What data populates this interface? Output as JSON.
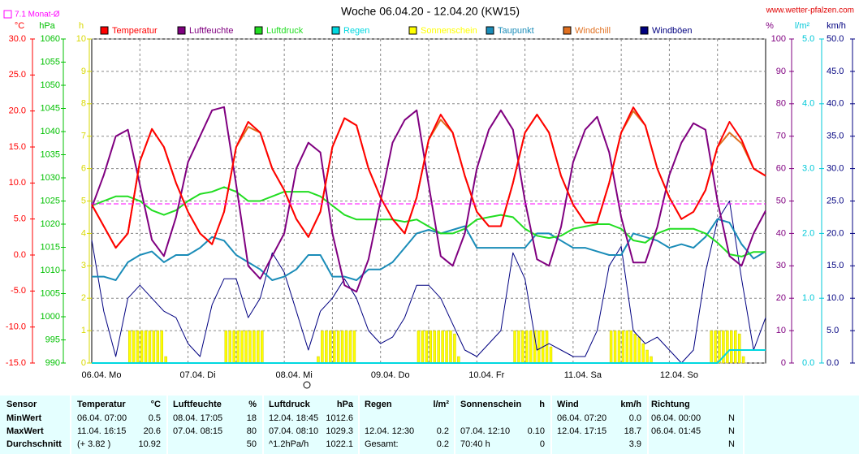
{
  "chart_data": {
    "type": "line",
    "title": "Woche 06.04.20 - 12.04.20 (KW15)",
    "source": "www.wetter-pfalzen.com",
    "monthly_avg_label": "7.1 Monat-Ø",
    "monthly_avg": 7.1,
    "monthly_avg_color": "#ff00ff",
    "grid": true,
    "grid_axis": "humidity",
    "xticks": [
      "06.04. Mo",
      "07.04. Di",
      "08.04. Mi",
      "09.04. Do",
      "10.04. Fr",
      "11.04. Sa",
      "12.04. So"
    ],
    "axes": {
      "temp": {
        "side": "left",
        "label": "°C",
        "color": "#ff0000",
        "lim": [
          -15,
          30
        ],
        "ticks": [
          {
            "value": -15,
            "label": "-15.0"
          },
          {
            "value": -10,
            "label": "-10.0"
          },
          {
            "value": -5,
            "label": "-5.0"
          },
          {
            "value": 0,
            "label": "0.0"
          },
          {
            "value": 5,
            "label": "5.0"
          },
          {
            "value": 10,
            "label": "10.0"
          },
          {
            "value": 15,
            "label": "15.0"
          },
          {
            "value": 20,
            "label": "20.0"
          },
          {
            "value": 25,
            "label": "25.0"
          },
          {
            "value": 30,
            "label": "30.0"
          }
        ]
      },
      "pressure": {
        "side": "left",
        "label": "hPa",
        "color": "#00c000",
        "lim": [
          990,
          1060
        ],
        "ticks": [
          990,
          995,
          1000,
          1005,
          1010,
          1015,
          1020,
          1025,
          1030,
          1035,
          1040,
          1045,
          1050,
          1055,
          1060
        ]
      },
      "sun": {
        "side": "left",
        "label": "h",
        "color": "#d8d800",
        "lim": [
          0,
          10
        ],
        "ticks": [
          0,
          1,
          2,
          3,
          4,
          5,
          6,
          7,
          8,
          9,
          10
        ]
      },
      "humidity": {
        "side": "right",
        "label": "%",
        "color": "#800080",
        "lim": [
          0,
          100
        ],
        "ticks": [
          0,
          10,
          20,
          30,
          40,
          50,
          60,
          70,
          80,
          90,
          100
        ]
      },
      "rain": {
        "side": "right",
        "label": "l/m²",
        "color": "#00c8d8",
        "lim": [
          0,
          5
        ],
        "ticks": [
          {
            "value": 0,
            "label": "0.0"
          },
          {
            "value": 1,
            "label": "1.0"
          },
          {
            "value": 2,
            "label": "2.0"
          },
          {
            "value": 3,
            "label": "3.0"
          },
          {
            "value": 4,
            "label": "4.0"
          },
          {
            "value": 5,
            "label": "5.0"
          }
        ]
      },
      "wind": {
        "side": "right",
        "label": "km/h",
        "color": "#000080",
        "lim": [
          0,
          50
        ],
        "ticks": [
          {
            "value": 0,
            "label": "0.0"
          },
          {
            "value": 5,
            "label": "5.0"
          },
          {
            "value": 10,
            "label": "10.0"
          },
          {
            "value": 15,
            "label": "15.0"
          },
          {
            "value": 20,
            "label": "20.0"
          },
          {
            "value": 25,
            "label": "25.0"
          },
          {
            "value": 30,
            "label": "30.0"
          },
          {
            "value": 35,
            "label": "35.0"
          },
          {
            "value": 40,
            "label": "40.0"
          },
          {
            "value": 45,
            "label": "45.0"
          },
          {
            "value": 50,
            "label": "50.0"
          }
        ]
      }
    },
    "series": [
      {
        "name": "Temperatur",
        "color": "#ff0000",
        "axis": "temp",
        "kind": "line",
        "values": [
          7,
          4,
          1,
          3,
          13,
          17.5,
          15,
          10,
          6,
          3,
          1.5,
          6,
          15,
          18.5,
          17,
          12,
          9,
          5,
          2.5,
          6,
          15,
          19,
          18,
          12,
          8,
          5,
          3,
          8,
          16,
          19.5,
          17,
          11,
          6,
          4,
          4,
          10,
          17,
          19.5,
          17,
          11,
          7,
          4.5,
          4.5,
          10,
          17,
          20.5,
          18,
          12,
          8,
          5,
          6,
          9,
          15,
          18.5,
          16,
          12,
          11
        ]
      },
      {
        "name": "Luftfeuchte",
        "color": "#800080",
        "axis": "humidity",
        "kind": "line",
        "values": [
          48,
          58,
          70,
          72,
          55,
          38,
          33,
          45,
          62,
          70,
          78,
          79,
          55,
          30,
          26,
          33,
          40,
          60,
          68,
          65,
          40,
          24,
          22,
          32,
          50,
          68,
          75,
          78,
          55,
          33,
          30,
          40,
          60,
          72,
          78,
          72,
          50,
          32,
          30,
          42,
          62,
          72,
          76,
          65,
          45,
          31,
          31,
          42,
          58,
          68,
          74,
          72,
          50,
          33,
          30,
          40,
          47
        ]
      },
      {
        "name": "Luftdruck",
        "color": "#22dd22",
        "axis": "pressure",
        "kind": "line",
        "values": [
          1024,
          1025,
          1026,
          1026,
          1025,
          1023,
          1022,
          1023,
          1025,
          1026.5,
          1027,
          1028,
          1027,
          1025,
          1025,
          1026,
          1027,
          1027,
          1027,
          1026,
          1024,
          1022,
          1021,
          1021,
          1021,
          1021,
          1020.5,
          1021,
          1019.5,
          1018,
          1018,
          1019,
          1021,
          1021.5,
          1022,
          1021.5,
          1019,
          1017.5,
          1017,
          1017.5,
          1019,
          1019.5,
          1020,
          1020,
          1019,
          1016.5,
          1016,
          1018,
          1019,
          1019,
          1019,
          1018,
          1016,
          1013.5,
          1013,
          1014,
          1014
        ]
      },
      {
        "name": "Regen",
        "color": "#00d8e0",
        "axis": "rain",
        "kind": "line",
        "values": [
          0,
          0,
          0,
          0,
          0,
          0,
          0,
          0,
          0,
          0,
          0,
          0,
          0,
          0,
          0,
          0,
          0,
          0,
          0,
          0,
          0,
          0,
          0,
          0,
          0,
          0,
          0,
          0,
          0,
          0,
          0,
          0,
          0,
          0,
          0,
          0,
          0,
          0,
          0,
          0,
          0,
          0,
          0,
          0,
          0,
          0,
          0,
          0,
          0,
          0,
          0,
          0,
          0,
          0.2,
          0.2,
          0.2,
          0.2
        ]
      },
      {
        "name": "Sonnenschein",
        "color": "#ffff00",
        "axis": "sun",
        "kind": "bar",
        "values": [
          0,
          0,
          0,
          0,
          0,
          0,
          0,
          0,
          0,
          1,
          1,
          1,
          1,
          1,
          1,
          1,
          1,
          1,
          0.2,
          0,
          0,
          0,
          0,
          0,
          0,
          0,
          0,
          0,
          0,
          0,
          0,
          0,
          0,
          1,
          1,
          1,
          1,
          1,
          1,
          1,
          1,
          1,
          1,
          0,
          0,
          0,
          0,
          0,
          0,
          0,
          0,
          0,
          0,
          0,
          0,
          0,
          0.2,
          1,
          1,
          1,
          1,
          1,
          1,
          1,
          1,
          1,
          0,
          0,
          0,
          0,
          0,
          0,
          0,
          0,
          0,
          0,
          0,
          0,
          0,
          0,
          0,
          1,
          1,
          1,
          1,
          1,
          1,
          1,
          1,
          1,
          0.9,
          0.2,
          0,
          0,
          0,
          0,
          0,
          0,
          0,
          0,
          0,
          0,
          0,
          0,
          0,
          1,
          1,
          1,
          1,
          1,
          1,
          1,
          1,
          1,
          0.5,
          0,
          0,
          0,
          0,
          0,
          0,
          0,
          0,
          0,
          0,
          0,
          0,
          0,
          0,
          1,
          1,
          1,
          1,
          1,
          1,
          0.9,
          0.8,
          0.6,
          0.4,
          0.2,
          0,
          0,
          0,
          0,
          0,
          0,
          0,
          0,
          0,
          0,
          0,
          0,
          0,
          0,
          1,
          1,
          1,
          1,
          1,
          1,
          1,
          0.9,
          0.2,
          0,
          0,
          0,
          0,
          0
        ]
      },
      {
        "name": "Taupunkt",
        "color": "#1a8cb8",
        "axis": "temp",
        "kind": "line",
        "values": [
          -3,
          -3,
          -3.5,
          -1,
          0,
          0.5,
          -1,
          0,
          0,
          1,
          2.5,
          2,
          0,
          -1,
          -2,
          -3.5,
          -3,
          -2,
          0,
          0,
          -3,
          -3,
          -3.5,
          -2,
          -2,
          -1,
          1,
          3,
          3.5,
          3,
          3.5,
          4,
          1,
          1,
          1,
          1,
          1,
          3,
          3,
          2,
          1,
          1,
          0.5,
          0,
          0,
          3,
          2.5,
          2,
          1,
          1.5,
          1,
          2.5,
          5,
          4.5,
          1.5,
          -0.5,
          0.5
        ]
      },
      {
        "name": "Windchill",
        "color": "#e07020",
        "axis": "temp",
        "kind": "line",
        "values": [
          7,
          4,
          1,
          3,
          13,
          17.5,
          15,
          10,
          6,
          3,
          1.5,
          6,
          15,
          17.8,
          17,
          12,
          9,
          5,
          2.5,
          6,
          15,
          19,
          18,
          12,
          8,
          5,
          3,
          8,
          16,
          18.8,
          17,
          11,
          6,
          4,
          4,
          10,
          17,
          19.5,
          17,
          11,
          7,
          4.5,
          4.5,
          10,
          17,
          20,
          18,
          12,
          8,
          5,
          6,
          9,
          15,
          17,
          15.5,
          12,
          11
        ]
      },
      {
        "name": "Windböen",
        "color": "#000080",
        "axis": "wind",
        "kind": "line",
        "values": [
          19,
          8,
          1,
          10,
          12,
          10,
          8,
          7,
          3,
          1,
          9,
          13,
          13,
          7,
          10,
          17,
          14,
          8,
          2,
          8,
          10,
          13,
          10,
          5,
          3,
          4,
          7,
          12,
          12,
          10,
          6,
          2,
          1,
          3,
          5,
          17,
          13,
          2,
          3,
          2,
          1,
          1,
          5,
          15,
          18,
          5,
          3,
          4,
          2,
          0,
          2,
          14,
          22,
          25,
          13,
          2,
          7
        ]
      }
    ]
  },
  "table": {
    "header": [
      "Sensor",
      "Temperatur",
      "°C",
      "Luftfeuchte",
      "%",
      "Luftdruck",
      "hPa",
      "Regen",
      "l/m²",
      "Sonnenschein",
      "h",
      "Wind",
      "km/h",
      "Richtung"
    ],
    "rows": [
      [
        "MinWert",
        "06.04. 07:00",
        "0.5",
        "08.04. 17:05",
        "18",
        "12.04. 18:45",
        "1012.6",
        null,
        null,
        null,
        null,
        "06.04. 07:20",
        "0.0",
        "06.04. 00:00",
        "N"
      ],
      [
        "MaxWert",
        "11.04. 16:15",
        "20.6",
        "07.04. 08:15",
        "80",
        "07.04. 08:10",
        "1029.3",
        "12.04. 12:30",
        "0.2",
        "07.04. 12:10",
        "0.10",
        "12.04. 17:15",
        "18.7",
        "06.04. 01:45",
        "N"
      ],
      [
        "Durchschnitt",
        "(+ 3.82 )",
        "10.92",
        null,
        "50",
        "^1.2hPa/h",
        "1022.1",
        "Gesamt:",
        "0.2",
        "70:40 h",
        "0",
        null,
        "3.9",
        null,
        "N"
      ]
    ]
  }
}
